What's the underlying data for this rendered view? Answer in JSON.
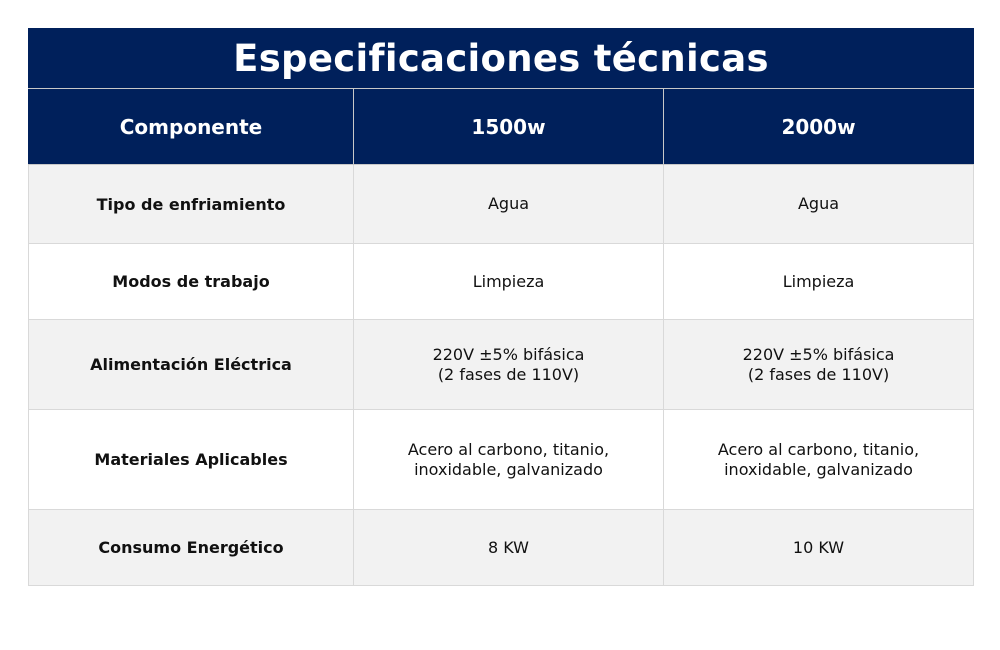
{
  "table": {
    "title": "Especificaciones técnicas",
    "headers": [
      "Componente",
      "1500w",
      "2000w"
    ],
    "rows": [
      {
        "label": "Tipo de enfriamiento",
        "v1500": [
          "Agua"
        ],
        "v2000": [
          "Agua"
        ]
      },
      {
        "label": "Modos de trabajo",
        "v1500": [
          "Limpieza"
        ],
        "v2000": [
          "Limpieza"
        ]
      },
      {
        "label": "Alimentación Eléctrica",
        "v1500": [
          "220V ±5% bifásica",
          "(2 fases de 110V)"
        ],
        "v2000": [
          "220V ±5% bifásica",
          "(2 fases de 110V)"
        ]
      },
      {
        "label": "Materiales Aplicables",
        "v1500": [
          "Acero al carbono, titanio,",
          "inoxidable, galvanizado"
        ],
        "v2000": [
          "Acero al carbono, titanio,",
          "inoxidable, galvanizado"
        ]
      },
      {
        "label": "Consumo Energético",
        "v1500": [
          "8 KW"
        ],
        "v2000": [
          "10 KW"
        ]
      }
    ]
  },
  "colors": {
    "header_bg": "#00205b",
    "header_text": "#ffffff",
    "row_alt_bg": "#f2f2f2",
    "border": "#d9d9d9"
  }
}
